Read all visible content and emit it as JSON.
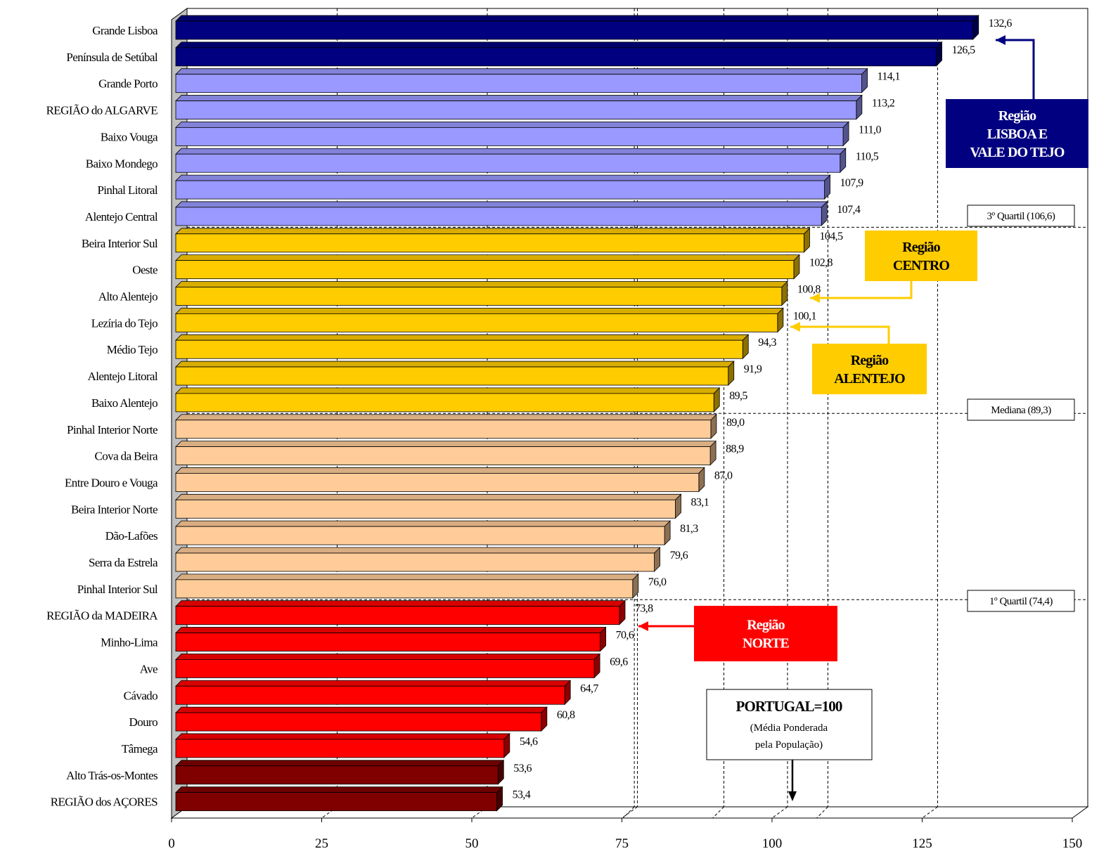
{
  "chart_data": {
    "type": "bar",
    "orientation": "horizontal",
    "categories": [
      "Grande Lisboa",
      "Península de Setúbal",
      "Grande Porto",
      "REGIÃO do ALGARVE",
      "Baixo Vouga",
      "Baixo Mondego",
      "Pinhal Litoral",
      "Alentejo Central",
      "Beira Interior Sul",
      "Oeste",
      "Alto Alentejo",
      "Lezíria do Tejo",
      "Médio Tejo",
      "Alentejo Litoral",
      "Baixo Alentejo",
      "Pinhal Interior Norte",
      "Cova da Beira",
      "Entre Douro e Vouga",
      "Beira Interior Norte",
      "Dão-Lafões",
      "Serra da Estrela",
      "Pinhal Interior Sul",
      "REGIÃO da MADEIRA",
      "Minho-Lima",
      "Ave",
      "Cávado",
      "Douro",
      "Tâmega",
      "Alto Trás-os-Montes",
      "REGIÃO dos AÇORES"
    ],
    "values": [
      132.6,
      126.5,
      114.1,
      113.2,
      111.0,
      110.5,
      107.9,
      107.4,
      104.5,
      102.8,
      100.8,
      100.1,
      94.3,
      91.9,
      89.5,
      89.0,
      88.9,
      87.0,
      83.1,
      81.3,
      79.6,
      76.0,
      73.8,
      70.6,
      69.6,
      64.7,
      60.8,
      54.6,
      53.6,
      53.4
    ],
    "value_labels": [
      "132,6",
      "126,5",
      "114,1",
      "113,2",
      "111,0",
      "110,5",
      "107,9",
      "107,4",
      "104,5",
      "102,8",
      "100,8",
      "100,1",
      "94,3",
      "91,9",
      "89,5",
      "89,0",
      "88,9",
      "87,0",
      "83,1",
      "81,3",
      "79,6",
      "76,0",
      "73,8",
      "70,6",
      "69,6",
      "64,7",
      "60,8",
      "54,6",
      "53,6",
      "53,4"
    ],
    "bar_colors": [
      "#000080",
      "#000080",
      "#9999ff",
      "#9999ff",
      "#9999ff",
      "#9999ff",
      "#9999ff",
      "#9999ff",
      "#ffcc00",
      "#ffcc00",
      "#ffcc00",
      "#ffcc00",
      "#ffcc00",
      "#ffcc00",
      "#ffcc00",
      "#ffcc99",
      "#ffcc99",
      "#ffcc99",
      "#ffcc99",
      "#ffcc99",
      "#ffcc99",
      "#ffcc99",
      "#ff0000",
      "#ff0000",
      "#ff0000",
      "#ff0000",
      "#ff0000",
      "#ff0000",
      "#800000",
      "#800000"
    ],
    "xlim": [
      0,
      150
    ],
    "x_ticks": [
      0,
      25,
      50,
      75,
      100,
      125,
      150
    ],
    "x_tick_labels": [
      "0",
      "25",
      "50",
      "75",
      "100",
      "125",
      "150"
    ],
    "gridlines": true,
    "reference_lines": [
      {
        "label": "3º Quartil (106,6)",
        "value": 106.6
      },
      {
        "label": "Mediana (89,3)",
        "value": 89.3
      },
      {
        "label": "1º Quartil (74,4)",
        "value": 74.4
      }
    ],
    "annotations": [
      {
        "lines": [
          "Região",
          "LISBOA E",
          "VALE DO TEJO"
        ],
        "bg": "#000080",
        "fg": "#ffffff"
      },
      {
        "lines": [
          "Região",
          "CENTRO"
        ],
        "bg": "#ffcc00",
        "fg": "#000000"
      },
      {
        "lines": [
          "Região",
          "ALENTEJO"
        ],
        "bg": "#ffcc00",
        "fg": "#000000"
      },
      {
        "lines": [
          "Região",
          "NORTE"
        ],
        "bg": "#ff0000",
        "fg": "#ffffff"
      }
    ],
    "portugal_box": {
      "title": "PORTUGAL=100",
      "lines": [
        "(Média Ponderada",
        "pela População)"
      ]
    }
  }
}
